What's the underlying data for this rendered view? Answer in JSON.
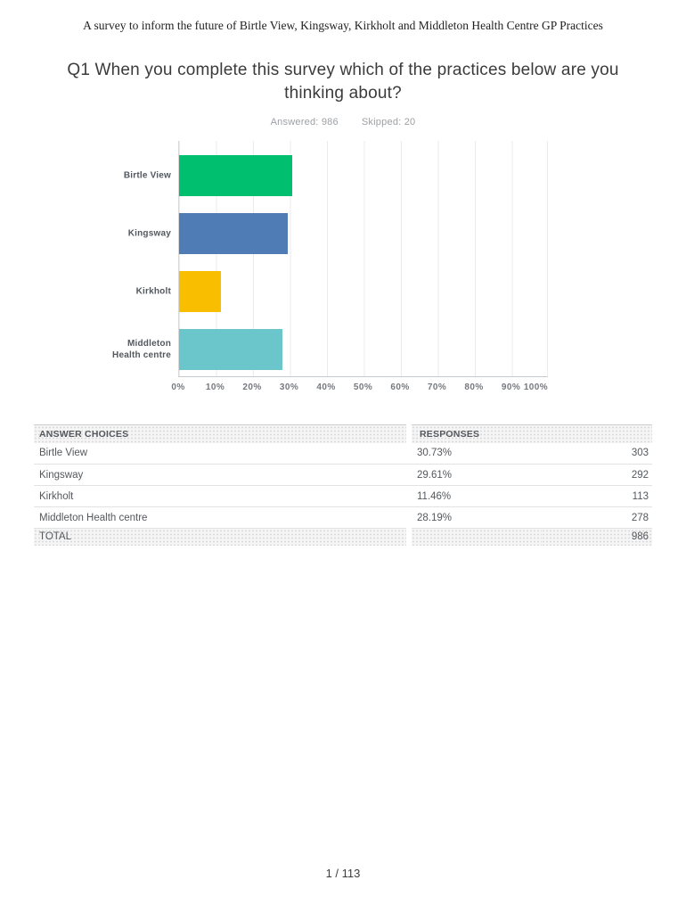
{
  "header": {
    "title": "A survey to inform the future of Birtle View, Kingsway, Kirkholt and Middleton Health Centre GP Practices"
  },
  "question": {
    "title": "Q1 When you complete this survey which of the practices below are you thinking about?",
    "answered": "Answered: 986",
    "skipped": "Skipped: 20"
  },
  "chart_data": {
    "type": "bar",
    "orientation": "horizontal",
    "title": "",
    "categories": [
      "Birtle View",
      "Kingsway",
      "Kirkholt",
      "Middleton\nHealth centre"
    ],
    "values": [
      30.73,
      29.61,
      11.46,
      28.19
    ],
    "colors": [
      "#00BF6F",
      "#507CB6",
      "#F9BE00",
      "#6BC6CB"
    ],
    "x_ticks": [
      "0%",
      "10%",
      "20%",
      "30%",
      "40%",
      "50%",
      "60%",
      "70%",
      "80%",
      "90%",
      "100%"
    ],
    "xlim": [
      0,
      100
    ],
    "grid": "vertical",
    "legend": "none"
  },
  "table": {
    "headers": [
      "ANSWER CHOICES",
      "RESPONSES"
    ],
    "rows": [
      {
        "label": "Birtle View",
        "percent": "30.73%",
        "count": "303"
      },
      {
        "label": "Kingsway",
        "percent": "29.61%",
        "count": "292"
      },
      {
        "label": "Kirkholt",
        "percent": "11.46%",
        "count": "113"
      },
      {
        "label": "Middleton Health centre",
        "percent": "28.19%",
        "count": "278"
      }
    ],
    "total_label": "TOTAL",
    "total_count": "986"
  },
  "footer": {
    "page_number": "1 / 113"
  }
}
